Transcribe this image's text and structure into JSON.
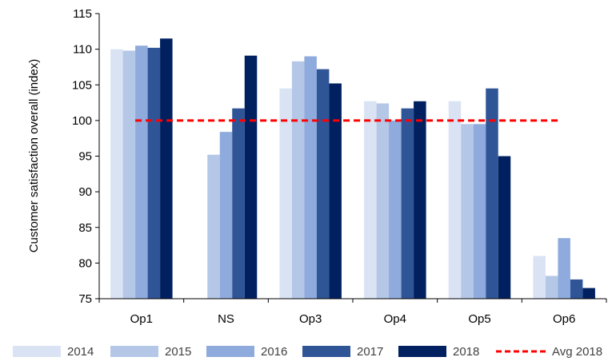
{
  "chart_data": {
    "type": "bar",
    "title": "",
    "xlabel": "",
    "ylabel": "Customer satisfaction overall (index)",
    "ylim": [
      75,
      115
    ],
    "yticks": [
      75,
      80,
      85,
      90,
      95,
      100,
      105,
      110,
      115
    ],
    "categories": [
      "Op1",
      "NS",
      "Op3",
      "Op4",
      "Op5",
      "Op6"
    ],
    "series": [
      {
        "name": "2014",
        "color": "#dae3f3",
        "values": [
          110.0,
          null,
          104.5,
          102.7,
          102.7,
          81.0
        ]
      },
      {
        "name": "2015",
        "color": "#b4c7e7",
        "values": [
          109.8,
          95.2,
          108.3,
          102.4,
          99.5,
          78.2
        ]
      },
      {
        "name": "2016",
        "color": "#8faadc",
        "values": [
          110.5,
          98.4,
          109.0,
          100.0,
          99.5,
          83.5
        ]
      },
      {
        "name": "2017",
        "color": "#2f5597",
        "values": [
          110.2,
          101.7,
          107.2,
          101.7,
          104.5,
          77.7
        ]
      },
      {
        "name": "2018",
        "color": "#002060",
        "values": [
          111.5,
          109.1,
          105.2,
          102.7,
          95.0,
          76.5
        ]
      }
    ],
    "reference_line": {
      "name": "Avg 2018",
      "value": 100,
      "color": "#ff0000",
      "style": "dashed"
    },
    "grid": false,
    "legend_position": "bottom"
  }
}
